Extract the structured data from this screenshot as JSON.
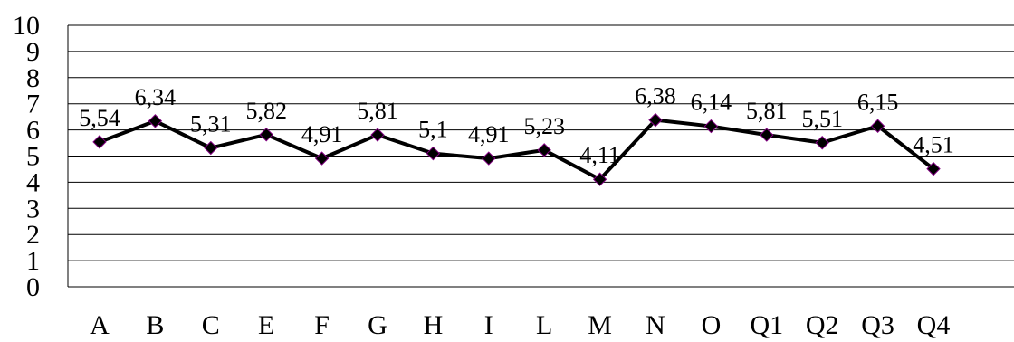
{
  "chart_data": {
    "type": "line",
    "categories": [
      "A",
      "B",
      "C",
      "E",
      "F",
      "G",
      "H",
      "I",
      "L",
      "M",
      "N",
      "O",
      "Q1",
      "Q2",
      "Q3",
      "Q4"
    ],
    "series": [
      {
        "values": [
          5.54,
          6.34,
          5.31,
          5.82,
          4.91,
          5.81,
          5.1,
          4.91,
          5.23,
          4.11,
          6.38,
          6.14,
          5.81,
          5.51,
          6.15,
          4.51
        ],
        "labels": [
          "5,54",
          "6,34",
          "5,31",
          "5,82",
          "4,91",
          "5,81",
          "5,1",
          "4,91",
          "5,23",
          "4,11",
          "6,38",
          "6,14",
          "5,81",
          "5,51",
          "6,15",
          "4,51"
        ]
      }
    ],
    "ylim": [
      0,
      10
    ],
    "yticks": [
      "0",
      "1",
      "2",
      "3",
      "4",
      "5",
      "6",
      "7",
      "8",
      "9",
      "10"
    ],
    "grid": true,
    "legend": "none",
    "colors": {
      "line": "#000000",
      "marker": "#000000",
      "marker_outline": "#800080",
      "grid": "#000000"
    }
  }
}
